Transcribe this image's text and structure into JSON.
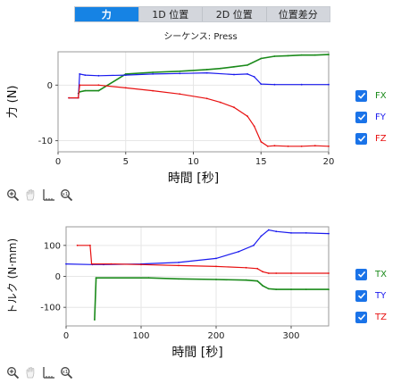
{
  "tabs": [
    {
      "label": "力",
      "active": true
    },
    {
      "label": "1D 位置",
      "active": false
    },
    {
      "label": "2D 位置",
      "active": false
    },
    {
      "label": "位置差分",
      "active": false
    }
  ],
  "sequence_label": "シーケンス: Press",
  "colors": {
    "x": "#1a8a1a",
    "y": "#1a1aee",
    "z": "#e81010",
    "tab_active": "#1683e4",
    "checkbox": "#1a73e8"
  },
  "chart_data": [
    {
      "type": "line",
      "xlabel": "時間 [秒]",
      "ylabel": "力 (N)",
      "xlim": [
        0,
        20
      ],
      "ylim": [
        -12,
        6
      ],
      "xticks": [
        "0",
        "5",
        "10",
        "15",
        "20"
      ],
      "yticks": [
        "-10",
        "0"
      ],
      "grid": true,
      "legend_position": "right",
      "series": [
        {
          "name": "FX",
          "x": [
            1.5,
            1.6,
            2,
            3,
            5,
            7,
            9,
            11,
            12,
            13,
            14,
            15,
            16,
            17,
            18,
            19,
            20
          ],
          "values": [
            -1.5,
            -1.2,
            -1.0,
            -1.0,
            2.0,
            2.3,
            2.5,
            2.8,
            3.0,
            3.3,
            3.6,
            4.8,
            5.2,
            5.3,
            5.4,
            5.4,
            5.5
          ]
        },
        {
          "name": "FY",
          "x": [
            0.8,
            1.5,
            1.6,
            2,
            3,
            5,
            7,
            9,
            11,
            13,
            14,
            14.5,
            15,
            16,
            18,
            20
          ],
          "values": [
            -2.3,
            -2.3,
            2.0,
            1.8,
            1.7,
            1.8,
            2.0,
            2.1,
            2.2,
            1.9,
            2.0,
            1.5,
            0.2,
            0.1,
            0.1,
            0.1
          ]
        },
        {
          "name": "FZ",
          "x": [
            0.8,
            1.5,
            1.6,
            3,
            5,
            7,
            9,
            11,
            12,
            13,
            14,
            14.5,
            15,
            15.5,
            16,
            17,
            18,
            19,
            20
          ],
          "values": [
            -2.3,
            -2.3,
            0,
            0,
            -0.5,
            -1.0,
            -1.6,
            -2.4,
            -3.1,
            -4.0,
            -5.6,
            -7.4,
            -10.2,
            -11.0,
            -10.9,
            -11.0,
            -11.0,
            -10.9,
            -11.0
          ]
        }
      ]
    },
    {
      "type": "line",
      "xlabel": "時間 [秒]",
      "ylabel": "トルク (N·mm)",
      "xlim": [
        0,
        350
      ],
      "ylim": [
        -160,
        160
      ],
      "xticks": [
        "0",
        "100",
        "200",
        "300"
      ],
      "yticks": [
        "-100",
        "0",
        "100"
      ],
      "grid": true,
      "legend_position": "right",
      "series": [
        {
          "name": "TX",
          "x": [
            38,
            40,
            110,
            150,
            200,
            240,
            255,
            262,
            270,
            280,
            300,
            320,
            350
          ],
          "values": [
            -140,
            -5,
            -5,
            -8,
            -10,
            -12,
            -15,
            -30,
            -40,
            -42,
            -42,
            -42,
            -42
          ]
        },
        {
          "name": "TY",
          "x": [
            0,
            35,
            50,
            100,
            150,
            200,
            230,
            250,
            260,
            270,
            280,
            300,
            320,
            350
          ],
          "values": [
            40,
            38,
            38,
            40,
            45,
            58,
            80,
            100,
            130,
            150,
            145,
            140,
            140,
            138
          ]
        },
        {
          "name": "TZ",
          "x": [
            15,
            32,
            34,
            60,
            100,
            150,
            200,
            240,
            255,
            262,
            270,
            280,
            300,
            350
          ],
          "values": [
            100,
            100,
            40,
            40,
            38,
            35,
            32,
            28,
            25,
            15,
            10,
            10,
            10,
            10
          ]
        }
      ]
    }
  ]
}
